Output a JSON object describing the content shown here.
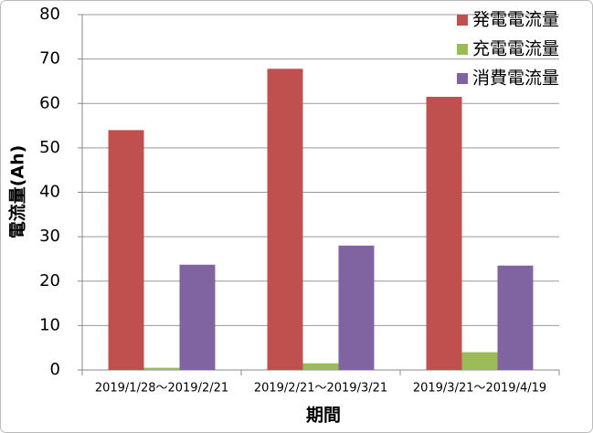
{
  "chart_data": {
    "type": "bar",
    "x_label": "期間",
    "y_label": "電流量(Ah)",
    "categories": [
      "2019/1/28～2019/2/21",
      "2019/2/21～2019/3/21",
      "2019/3/21～2019/4/19"
    ],
    "series": [
      {
        "name": "発電電流量",
        "color": "#c0504d",
        "values": [
          54,
          67.8,
          61.5
        ]
      },
      {
        "name": "充電電流量",
        "color": "#9bbb59",
        "values": [
          0.5,
          1.5,
          4
        ]
      },
      {
        "name": "消費電流量",
        "color": "#8064a2",
        "values": [
          23.7,
          28,
          23.5
        ]
      }
    ],
    "ylim": [
      0,
      80
    ],
    "yticks": [
      0,
      10,
      20,
      30,
      40,
      50,
      60,
      70,
      80
    ],
    "grid": true,
    "legend": "top-right"
  }
}
